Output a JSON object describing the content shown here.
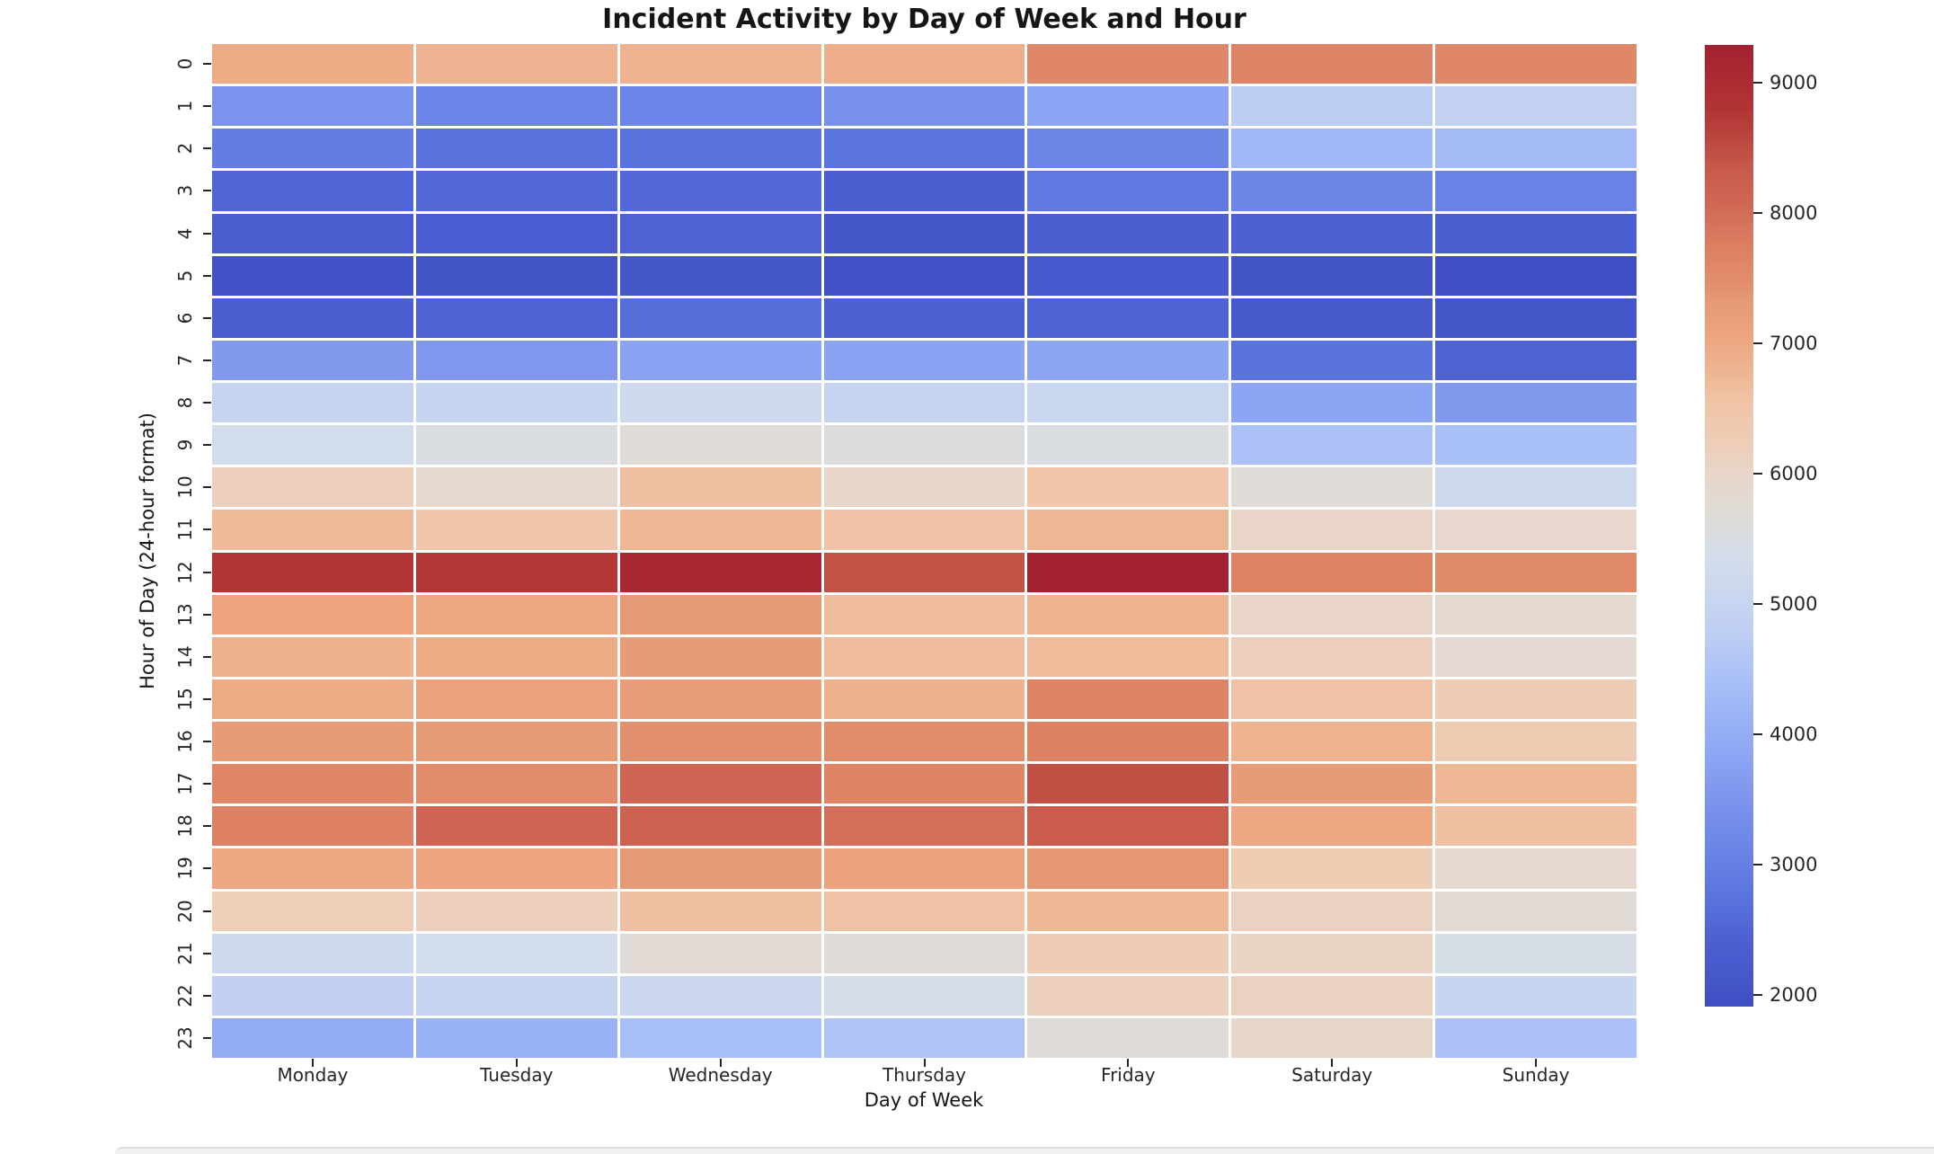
{
  "page": {
    "background": "#ffffff"
  },
  "chart_data": {
    "type": "heatmap",
    "title": "Incident Activity by Day of Week and Hour",
    "xlabel": "Day of Week",
    "ylabel": "Hour of Day (24-hour format)",
    "x_categories": [
      "Monday",
      "Tuesday",
      "Wednesday",
      "Thursday",
      "Friday",
      "Saturday",
      "Sunday"
    ],
    "y_categories": [
      "0",
      "1",
      "2",
      "3",
      "4",
      "5",
      "6",
      "7",
      "8",
      "9",
      "10",
      "11",
      "12",
      "13",
      "14",
      "15",
      "16",
      "17",
      "18",
      "19",
      "20",
      "21",
      "22",
      "23"
    ],
    "vmin": 1910,
    "vmax": 9290,
    "grid_line_color": "#ffffff",
    "legend_position": "right",
    "colorbar_ticks": [
      2000,
      3000,
      4000,
      5000,
      6000,
      7000,
      8000,
      9000
    ],
    "colormap_name": "coolwarm",
    "colormap_stops": [
      {
        "v": 1910,
        "c": "#3f4ec2"
      },
      {
        "v": 2100,
        "c": "#4556c9"
      },
      {
        "v": 2400,
        "c": "#4c5fd1"
      },
      {
        "v": 2750,
        "c": "#5a74de"
      },
      {
        "v": 3150,
        "c": "#6c86e8"
      },
      {
        "v": 3600,
        "c": "#8299ee"
      },
      {
        "v": 3850,
        "c": "#8ca6f4"
      },
      {
        "v": 4400,
        "c": "#a9bff8"
      },
      {
        "v": 4760,
        "c": "#bdcdf4"
      },
      {
        "v": 5050,
        "c": "#c9d6ef"
      },
      {
        "v": 5400,
        "c": "#d5dde9"
      },
      {
        "v": 5600,
        "c": "#dcdcda"
      },
      {
        "v": 5950,
        "c": "#e7d7cc"
      },
      {
        "v": 6250,
        "c": "#eecdb6"
      },
      {
        "v": 6550,
        "c": "#f0c3a6"
      },
      {
        "v": 6760,
        "c": "#eeb794"
      },
      {
        "v": 7050,
        "c": "#eda47f"
      },
      {
        "v": 7300,
        "c": "#e69a76"
      },
      {
        "v": 7500,
        "c": "#e18c6b"
      },
      {
        "v": 7700,
        "c": "#dd8163"
      },
      {
        "v": 7950,
        "c": "#d4705a"
      },
      {
        "v": 8100,
        "c": "#cf6552"
      },
      {
        "v": 8300,
        "c": "#c95c4c"
      },
      {
        "v": 8800,
        "c": "#b13434"
      },
      {
        "v": 9290,
        "c": "#a32130"
      }
    ],
    "values": [
      [
        6950,
        6820,
        6830,
        6900,
        7590,
        7660,
        7590
      ],
      [
        3450,
        3100,
        3110,
        3400,
        3820,
        4760,
        4890
      ],
      [
        2950,
        2700,
        2760,
        2800,
        3150,
        4240,
        4300
      ],
      [
        2500,
        2550,
        2570,
        2400,
        2850,
        3140,
        3050
      ],
      [
        2300,
        2310,
        2450,
        2110,
        2400,
        2420,
        2350
      ],
      [
        2010,
        2020,
        2110,
        1990,
        2200,
        2050,
        1910
      ],
      [
        2400,
        2450,
        2650,
        2410,
        2460,
        2210,
        2100
      ],
      [
        3600,
        3560,
        3790,
        3800,
        3850,
        2760,
        2460
      ],
      [
        5000,
        5010,
        5190,
        4950,
        5060,
        3860,
        3610
      ],
      [
        5350,
        5500,
        5690,
        5550,
        5510,
        4450,
        4400
      ],
      [
        6150,
        5900,
        6600,
        5980,
        6500,
        5650,
        5150
      ],
      [
        6700,
        6500,
        6780,
        6550,
        6760,
        6010,
        5950
      ],
      [
        8800,
        8760,
        9100,
        8420,
        9290,
        7690,
        7560
      ],
      [
        7050,
        7010,
        7320,
        6660,
        6810,
        6010,
        5900
      ],
      [
        6860,
        6950,
        7250,
        6650,
        6670,
        6150,
        5810
      ],
      [
        6950,
        7100,
        7210,
        6860,
        7640,
        6560,
        6250
      ],
      [
        7260,
        7300,
        7450,
        7500,
        7700,
        6810,
        6310
      ],
      [
        7600,
        7510,
        8090,
        7620,
        8440,
        7260,
        6760
      ],
      [
        7710,
        8100,
        8150,
        7950,
        8300,
        7010,
        6600
      ],
      [
        7000,
        7060,
        7300,
        7110,
        7350,
        6260,
        5910
      ],
      [
        6200,
        6160,
        6600,
        6560,
        6750,
        6110,
        5750
      ],
      [
        5150,
        5350,
        5750,
        5710,
        6250,
        6060,
        5450
      ],
      [
        4850,
        5000,
        5100,
        5400,
        6150,
        6110,
        5010
      ],
      [
        3950,
        4100,
        4400,
        4500,
        5650,
        5960,
        4460
      ]
    ]
  },
  "ui": {
    "bottom_scrollbar": {
      "track_color": "#f1f1f1",
      "border_color": "#dcdcdc"
    }
  }
}
